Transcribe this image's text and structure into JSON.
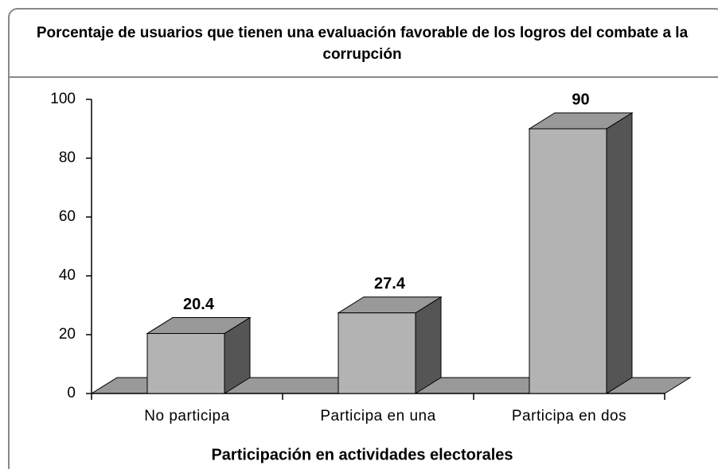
{
  "chart_data": {
    "type": "bar",
    "title": "Porcentaje de usuarios que tienen una evaluación favorable de los logros del combate a la corrupción",
    "x_label": "Participación en actividades electorales",
    "categories": [
      "No participa",
      "Participa en una",
      "Participa en dos"
    ],
    "values": [
      20.4,
      27.4,
      90
    ],
    "color": "#b3b3b3",
    "ylim": [
      0,
      100
    ],
    "yticks": [
      0,
      20,
      40,
      60,
      80,
      100
    ]
  }
}
